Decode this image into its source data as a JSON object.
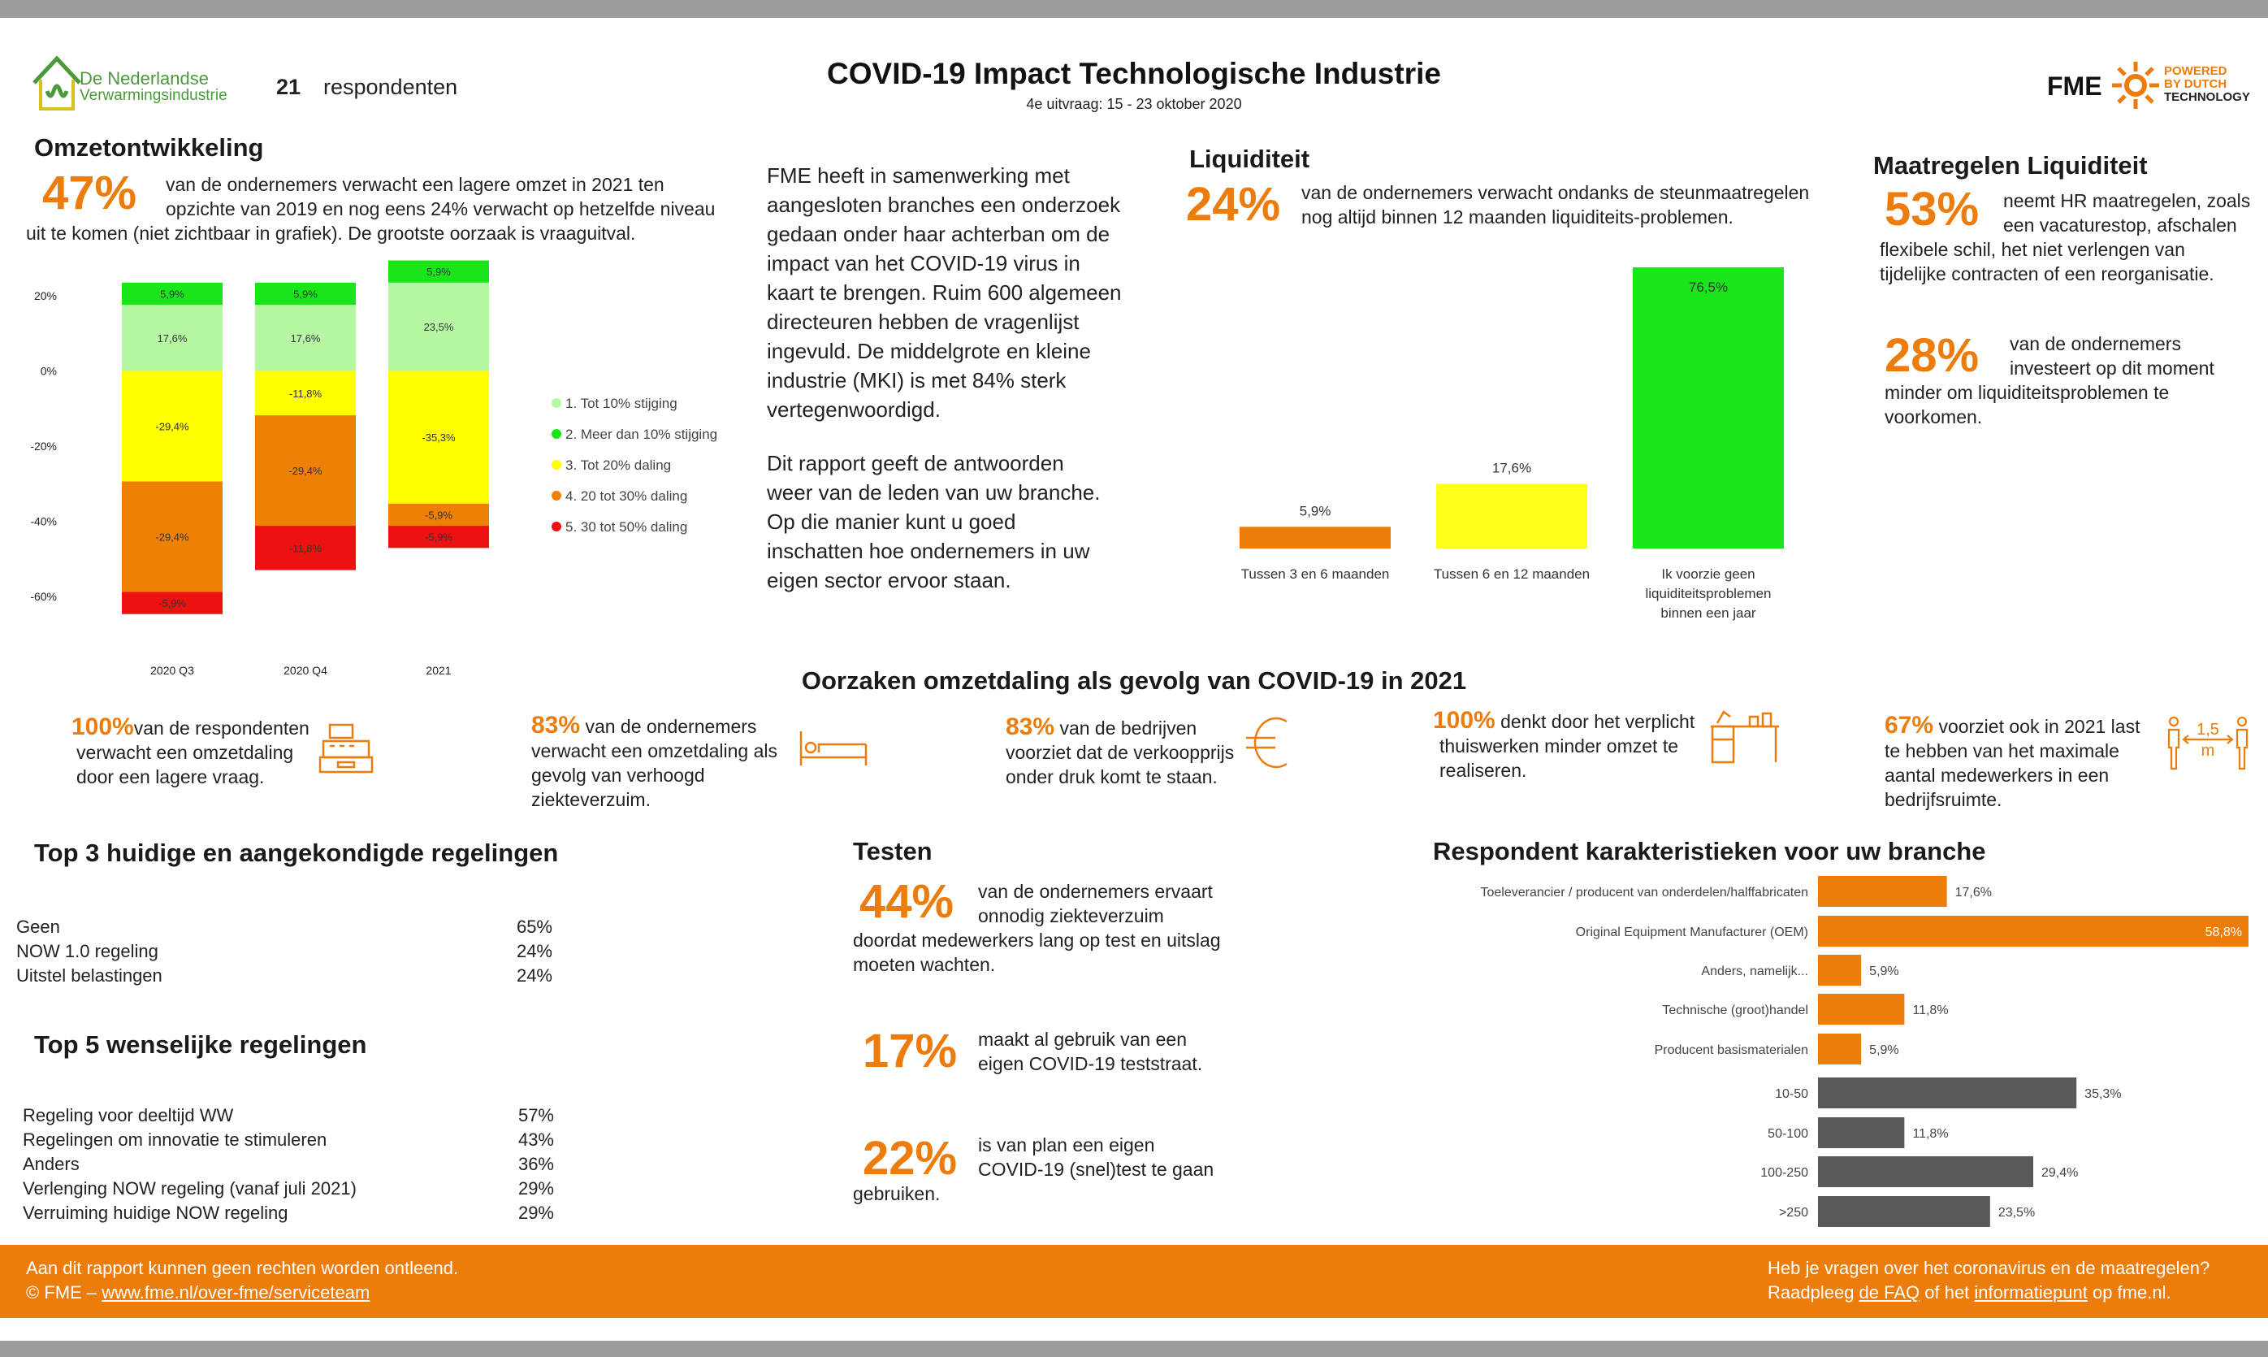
{
  "header": {
    "logo_line1": "De Nederlandse",
    "logo_line2": "Verwarmingsindustrie",
    "respondents_count": "21",
    "respondents_label": "respondenten",
    "title": "COVID-19 Impact Technologische Industrie",
    "subtitle": "4e uitvraag: 15 - 23 oktober 2020",
    "fme_logo": "FME",
    "fme_tag1": "POWERED",
    "fme_tag2": "BY DUTCH",
    "fme_tag3": "TECHNOLOGY"
  },
  "omzet": {
    "heading": "Omzetontwikkeling",
    "pct": "47%",
    "line1": "van de ondernemers verwacht een lagere omzet in 2021 ten",
    "line2": "opzichte van 2019 en nog eens 24%  verwacht op hetzelfde niveau",
    "line3": "uit te komen (niet zichtbaar in grafiek). De grootste oorzaak is vraaguitval."
  },
  "chart_data": [
    {
      "type": "bar",
      "stacked": true,
      "categories": [
        "2020 Q3",
        "2020 Q4",
        "2021"
      ],
      "ylim": [
        -60,
        20
      ],
      "yticks": [
        "20%",
        "0%",
        "-20%",
        "-40%",
        "-60%"
      ],
      "legend_position": "right",
      "series": [
        {
          "name": "1. Tot 10% stijging",
          "color": "#b6f7a4",
          "values": [
            17.6,
            17.6,
            23.5
          ],
          "labels": [
            "17,6%",
            "17,6%",
            "23,5%"
          ]
        },
        {
          "name": "2. Meer dan 10% stijging",
          "color": "#19e619",
          "values": [
            5.9,
            5.9,
            5.9
          ],
          "labels": [
            "5,9%",
            "5,9%",
            "5,9%"
          ]
        },
        {
          "name": "3. Tot 20% daling",
          "color": "#ffff00",
          "values": [
            -29.4,
            -11.8,
            -35.3
          ],
          "labels": [
            "-29,4%",
            "-11,8%",
            "-35,3%"
          ]
        },
        {
          "name": "4. 20 tot 30% daling",
          "color": "#ee8005",
          "values": [
            -29.4,
            -29.4,
            -5.9
          ],
          "labels": [
            "-29,4%",
            "-29,4%",
            "-5,9%"
          ]
        },
        {
          "name": "5. 30 tot 50% daling",
          "color": "#ee1111",
          "values": [
            -5.9,
            -11.8,
            -5.9
          ],
          "labels": [
            "-5,9%",
            "-11,8%",
            "-5,9%"
          ]
        }
      ]
    },
    {
      "type": "bar",
      "title": "Liquiditeit",
      "categories": [
        "Tussen 3 en 6 maanden",
        "Tussen 6 en 12 maanden",
        "Ik voorzie geen liquiditeitsproblemen binnen een jaar"
      ],
      "values": [
        5.9,
        17.6,
        76.5
      ],
      "labels": [
        "5,9%",
        "17,6%",
        "76,5%"
      ],
      "colors": [
        "#ec7d0d",
        "#ffff19",
        "#19e619"
      ]
    },
    {
      "type": "bar",
      "orientation": "horizontal",
      "title": "Respondent karakteristieken voor uw branche",
      "categories": [
        "Toeleverancier / producent van onderdelen/halffabricaten",
        "Original Equipment Manufacturer (OEM)",
        "Anders, namelijk...",
        "Technische (groot)handel",
        "Producent basismaterialen",
        "10-50",
        "50-100",
        "100-250",
        ">250"
      ],
      "values": [
        17.6,
        58.8,
        5.9,
        11.8,
        5.9,
        35.3,
        11.8,
        29.4,
        23.5
      ],
      "labels": [
        "17,6%",
        "58,8%",
        "5,9%",
        "11,8%",
        "5,9%",
        "35,3%",
        "11,8%",
        "29,4%",
        "23,5%"
      ],
      "colors": [
        "#ec7d0d",
        "#ec7d0d",
        "#ec7d0d",
        "#ec7d0d",
        "#ec7d0d",
        "#595959",
        "#595959",
        "#595959",
        "#595959"
      ]
    }
  ],
  "intro": {
    "p1_lines": [
      "FME heeft in samenwerking met",
      "aangesloten branches een onderzoek",
      "gedaan onder haar achterban om de",
      "impact van het COVID-19 virus in",
      "kaart te brengen. Ruim 600 algemeen",
      "directeuren hebben de vragenlijst",
      "ingevuld. De middelgrote en kleine",
      "industrie (MKI) is met 84% sterk",
      "vertegenwoordigd."
    ],
    "p2_lines": [
      "Dit rapport geeft de antwoorden",
      "weer van de leden van uw branche.",
      "Op die manier kunt u goed",
      "inschatten hoe ondernemers in uw",
      "eigen sector ervoor staan."
    ]
  },
  "liquiditeit": {
    "heading": "Liquiditeit",
    "pct": "24%",
    "line1": "van de ondernemers verwacht ondanks de steunmaatregelen",
    "line2": "nog altijd binnen 12 maanden liquiditeits-problemen."
  },
  "maatregelen": {
    "heading": "Maatregelen Liquiditeit",
    "pct1": "53%",
    "a1": "neemt HR maatregelen, zoals",
    "a2": "een vacaturestop, afschalen",
    "a3": "flexibele schil, het niet verlengen van",
    "a4": "tijdelijke contracten of een reorganisatie.",
    "pct2": "28%",
    "b1": "van de ondernemers",
    "b2": "investeert  op dit moment",
    "b3": "minder om liquiditeitsproblemen te",
    "b4": "voorkomen."
  },
  "oorzaken": {
    "heading": "Oorzaken omzetdaling als gevolg van COVID-19 in 2021",
    "items": [
      {
        "pct": "100%",
        "l1": "van de respondenten",
        "l2": "verwacht een omzetdaling",
        "l3": "door een lagere vraag.",
        "l4": "",
        "icon": "cash-register-icon"
      },
      {
        "pct": "83%",
        "l1": "van de ondernemers",
        "l2": "verwacht een omzetdaling als",
        "l3": "gevolg van verhoogd",
        "l4": "ziekteverzuim.",
        "icon": "bed-icon"
      },
      {
        "pct": "83%",
        "l1": "van de bedrijven",
        "l2": "voorziet dat de verkoopprijs",
        "l3": "onder druk komt te staan.",
        "l4": "",
        "icon": "euro-icon"
      },
      {
        "pct": "100%",
        "l1": "denkt door het verplicht",
        "l2": "thuiswerken minder omzet te",
        "l3": "realiseren.",
        "l4": "",
        "icon": "desk-icon"
      },
      {
        "pct": "67%",
        "l1": "voorziet ook in 2021 last",
        "l2": "te hebben van het maximale",
        "l3": "aantal medewerkers in een",
        "l4": "bedrijfsruimte.",
        "icon": "distance-icon"
      }
    ],
    "distance_label": "1,5",
    "distance_unit": "m"
  },
  "top3": {
    "heading": "Top 3 huidige en aangekondigde regelingen",
    "rows": [
      {
        "label": "Geen",
        "value": "65%"
      },
      {
        "label": "NOW 1.0 regeling",
        "value": "24%"
      },
      {
        "label": "Uitstel belastingen",
        "value": "24%"
      }
    ]
  },
  "top5": {
    "heading": "Top 5 wenselijke regelingen",
    "rows": [
      {
        "label": "Regeling voor deeltijd WW",
        "value": "57%"
      },
      {
        "label": "Regelingen om innovatie te stimuleren",
        "value": "43%"
      },
      {
        "label": "Anders",
        "value": "36%"
      },
      {
        "label": "Verlenging NOW regeling (vanaf juli 2021)",
        "value": "29%"
      },
      {
        "label": "Verruiming huidige NOW regeling",
        "value": "29%"
      }
    ]
  },
  "testen": {
    "heading": "Testen",
    "pct1": "44%",
    "a1": "van de ondernemers ervaart",
    "a2": "onnodig ziekteverzuim",
    "a3": "doordat medewerkers lang op test en uitslag",
    "a4": "moeten wachten.",
    "pct2": "17%",
    "b1": "maakt al gebruik van een",
    "b2": "eigen COVID-19 teststraat.",
    "pct3": "22%",
    "c1": "is van plan een eigen",
    "c2": "COVID-19 (snel)test te gaan",
    "c3": "gebruiken."
  },
  "respondent": {
    "heading": "Respondent karakteristieken voor uw branche"
  },
  "footer": {
    "left1": "Aan dit rapport kunnen geen rechten worden ontleend.",
    "left2_prefix": "© FME – ",
    "left2_link": "www.fme.nl/over-fme/serviceteam",
    "right1": "Heb je vragen over het coronavirus en de maatregelen?",
    "right2_a": "Raadpleeg ",
    "right2_link1": "de FAQ",
    "right2_b": " of het ",
    "right2_link2": "informatiepunt",
    "right2_c": " op fme.nl."
  }
}
